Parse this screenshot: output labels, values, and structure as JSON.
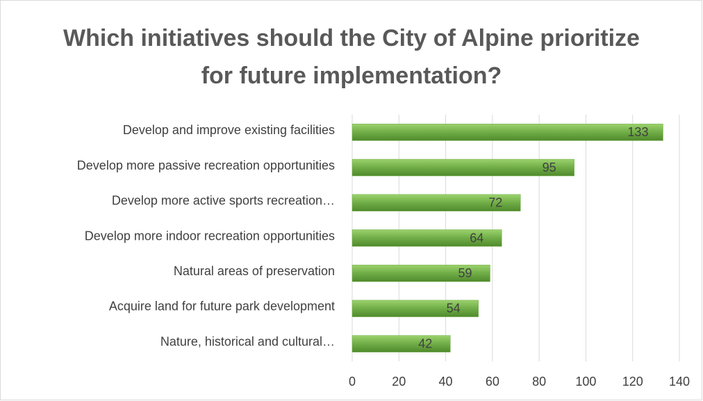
{
  "chart_data": {
    "type": "bar",
    "orientation": "horizontal",
    "title": "Which initiatives should the City of Alpine prioritize for future implementation?",
    "categories": [
      "Develop and improve existing facilities",
      "Develop more passive recreation opportunities",
      "Develop more active sports recreation…",
      "Develop more indoor recreation opportunities",
      "Natural areas of preservation",
      "Acquire land for future park development",
      "Nature, historical and cultural…"
    ],
    "values": [
      133,
      95,
      72,
      64,
      59,
      54,
      42
    ],
    "color": "#70ad47",
    "xlim": [
      0,
      140
    ],
    "xticks": [
      0,
      20,
      40,
      60,
      80,
      100,
      120,
      140
    ],
    "grid": true
  }
}
